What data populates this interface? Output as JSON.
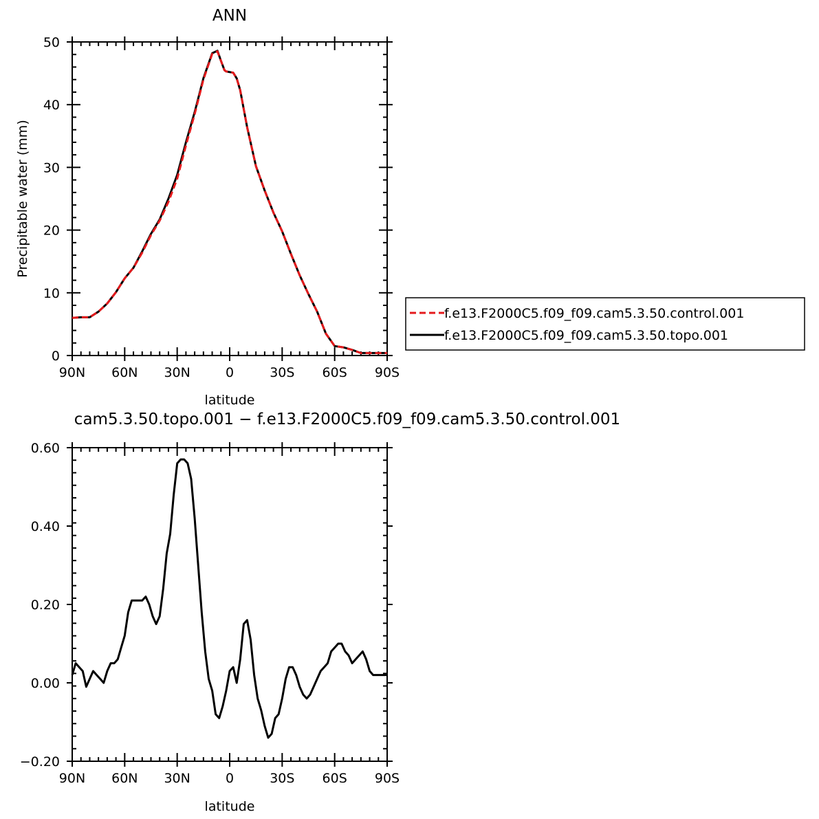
{
  "chart_data": [
    {
      "type": "line",
      "title": "ANN",
      "xlabel": "latitude",
      "ylabel": "Precipitable water (mm)",
      "xlim": [
        90,
        -90
      ],
      "ylim": [
        0,
        50
      ],
      "x_ticks": [
        {
          "value": 90,
          "label": "90N"
        },
        {
          "value": 60,
          "label": "60N"
        },
        {
          "value": 30,
          "label": "30N"
        },
        {
          "value": 0,
          "label": "0"
        },
        {
          "value": -30,
          "label": "30S"
        },
        {
          "value": -60,
          "label": "60S"
        },
        {
          "value": -90,
          "label": "90S"
        }
      ],
      "y_ticks": [
        {
          "value": 0,
          "label": "0"
        },
        {
          "value": 10,
          "label": "10"
        },
        {
          "value": 20,
          "label": "20"
        },
        {
          "value": 30,
          "label": "30"
        },
        {
          "value": 40,
          "label": "40"
        },
        {
          "value": 50,
          "label": "50"
        }
      ],
      "grid": false,
      "legend_position": "right",
      "series": [
        {
          "name": "f.e13.F2000C5.f09_f09.cam5.3.50.control.001",
          "color": "#e41a1c",
          "dash": "dashed",
          "x": [
            90,
            85,
            80,
            75,
            70,
            65,
            60,
            55,
            50,
            45,
            40,
            35,
            30,
            25,
            20,
            15,
            10,
            7,
            5,
            3,
            2,
            0,
            -2,
            -4,
            -6,
            -10,
            -15,
            -20,
            -25,
            -30,
            -35,
            -40,
            -45,
            -50,
            -55,
            -60,
            -65,
            -70,
            -75,
            -80,
            -84,
            -88,
            -90
          ],
          "y": [
            6.0,
            6.1,
            6.1,
            7.0,
            8.3,
            10.1,
            12.3,
            14.0,
            16.4,
            19.2,
            21.5,
            24.5,
            28.2,
            33.5,
            38.5,
            44.0,
            48.1,
            48.5,
            47.0,
            45.5,
            45.3,
            45.2,
            45.1,
            44.2,
            42.3,
            36.4,
            30.2,
            26.3,
            22.8,
            19.8,
            16.2,
            12.8,
            9.8,
            7.0,
            3.5,
            1.5,
            1.3,
            0.9,
            0.4,
            0.4,
            0.4,
            0.4,
            0.4
          ]
        },
        {
          "name": "f.e13.F2000C5.f09_f09.cam5.3.50.topo.001",
          "color": "#000000",
          "dash": "solid",
          "x": [
            90,
            85,
            80,
            75,
            70,
            65,
            60,
            55,
            50,
            45,
            40,
            35,
            30,
            25,
            20,
            15,
            10,
            7,
            5,
            3,
            2,
            0,
            -2,
            -4,
            -6,
            -10,
            -15,
            -20,
            -25,
            -30,
            -35,
            -40,
            -45,
            -50,
            -55,
            -60,
            -65,
            -70,
            -75,
            -80,
            -84,
            -88,
            -90
          ],
          "y": [
            6.0,
            6.1,
            6.1,
            7.0,
            8.3,
            10.1,
            12.3,
            14.0,
            16.6,
            19.4,
            21.7,
            25.0,
            28.8,
            34.0,
            38.8,
            44.2,
            48.2,
            48.6,
            47.0,
            45.5,
            45.3,
            45.2,
            45.1,
            44.2,
            42.3,
            36.4,
            30.2,
            26.3,
            22.8,
            19.8,
            16.2,
            12.8,
            9.8,
            7.0,
            3.5,
            1.5,
            1.3,
            0.9,
            0.4,
            0.4,
            0.4,
            0.4,
            0.4
          ]
        }
      ]
    },
    {
      "type": "line",
      "title": "cam5.3.50.topo.001 - f.e13.F2000C5.f09_f09.cam5.3.50.control.001",
      "xlabel": "latitude",
      "ylabel": "",
      "xlim": [
        90,
        -90
      ],
      "ylim": [
        -0.2,
        0.6
      ],
      "x_ticks": [
        {
          "value": 90,
          "label": "90N"
        },
        {
          "value": 60,
          "label": "60N"
        },
        {
          "value": 30,
          "label": "30N"
        },
        {
          "value": 0,
          "label": "0"
        },
        {
          "value": -30,
          "label": "30S"
        },
        {
          "value": -60,
          "label": "60S"
        },
        {
          "value": -90,
          "label": "90S"
        }
      ],
      "y_ticks": [
        {
          "value": -0.2,
          "label": "-0.20"
        },
        {
          "value": 0.0,
          "label": "0.00"
        },
        {
          "value": 0.2,
          "label": "0.20"
        },
        {
          "value": 0.4,
          "label": "0.40"
        },
        {
          "value": 0.6,
          "label": "0.60"
        }
      ],
      "grid": false,
      "series": [
        {
          "color": "#000000",
          "x": [
            90,
            88,
            86,
            84,
            82,
            80,
            78,
            76,
            74,
            72,
            70,
            68,
            66,
            64,
            62,
            60,
            58,
            56,
            54,
            52,
            50,
            48,
            46,
            44,
            42,
            40,
            38,
            36,
            34,
            32,
            30,
            28,
            26,
            24,
            22,
            20,
            18,
            16,
            14,
            12,
            10,
            8,
            6,
            4,
            2,
            0,
            -2,
            -4,
            -6,
            -8,
            -10,
            -12,
            -14,
            -16,
            -18,
            -20,
            -22,
            -24,
            -26,
            -28,
            -30,
            -32,
            -34,
            -36,
            -38,
            -40,
            -42,
            -44,
            -46,
            -48,
            -50,
            -52,
            -54,
            -56,
            -58,
            -60,
            -62,
            -64,
            -66,
            -68,
            -70,
            -72,
            -74,
            -76,
            -78,
            -80,
            -82,
            -84,
            -86,
            -88,
            -90
          ],
          "y": [
            0.02,
            0.05,
            0.04,
            0.03,
            -0.01,
            0.01,
            0.03,
            0.02,
            0.01,
            0.0,
            0.03,
            0.05,
            0.05,
            0.06,
            0.09,
            0.12,
            0.18,
            0.21,
            0.21,
            0.21,
            0.21,
            0.22,
            0.2,
            0.17,
            0.15,
            0.17,
            0.24,
            0.33,
            0.38,
            0.48,
            0.56,
            0.57,
            0.57,
            0.56,
            0.52,
            0.42,
            0.3,
            0.18,
            0.08,
            0.01,
            -0.02,
            -0.08,
            -0.09,
            -0.06,
            -0.02,
            0.03,
            0.04,
            0.0,
            0.06,
            0.15,
            0.16,
            0.11,
            0.02,
            -0.04,
            -0.07,
            -0.11,
            -0.14,
            -0.13,
            -0.09,
            -0.08,
            -0.04,
            0.01,
            0.04,
            0.04,
            0.02,
            -0.01,
            -0.03,
            -0.04,
            -0.03,
            -0.01,
            0.01,
            0.03,
            0.04,
            0.05,
            0.08,
            0.09,
            0.1,
            0.1,
            0.08,
            0.07,
            0.05,
            0.06,
            0.07,
            0.08,
            0.06,
            0.03,
            0.02,
            0.02,
            0.02,
            0.02,
            0.02
          ]
        }
      ]
    }
  ]
}
